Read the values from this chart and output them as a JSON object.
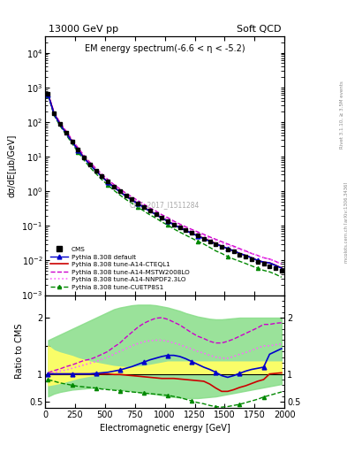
{
  "title_left": "13000 GeV pp",
  "title_right": "Soft QCD",
  "main_title": "EM energy spectrum(-6.6 < η < -5.2)",
  "ylabel_main": "dσ/dE[μb/GeV]",
  "ylabel_ratio": "Ratio to CMS",
  "xlabel": "Electromagnetic energy [GeV]",
  "watermark": "CMS_2017_I1511284",
  "rivet_text": "Rivet 3.1.10, ≥ 3.5M events",
  "mcplots_text": "mcplots.cern.ch [arXiv:1306.3436]",
  "xlim": [
    0,
    2000
  ],
  "ylim_main_log": [
    0.001,
    30000.0
  ],
  "ylim_ratio": [
    0.4,
    2.4
  ],
  "x_data": [
    25,
    75,
    125,
    175,
    225,
    275,
    325,
    375,
    425,
    475,
    525,
    575,
    625,
    675,
    725,
    775,
    825,
    875,
    925,
    975,
    1025,
    1075,
    1125,
    1175,
    1225,
    1275,
    1325,
    1375,
    1425,
    1475,
    1525,
    1575,
    1625,
    1675,
    1725,
    1775,
    1825,
    1875,
    1925,
    1975
  ],
  "cms_y": [
    650,
    180,
    90,
    50,
    28,
    16,
    9.5,
    6.0,
    4.0,
    2.7,
    1.9,
    1.35,
    1.0,
    0.75,
    0.58,
    0.45,
    0.35,
    0.27,
    0.22,
    0.17,
    0.14,
    0.11,
    0.09,
    0.075,
    0.062,
    0.052,
    0.043,
    0.036,
    0.03,
    0.025,
    0.021,
    0.018,
    0.015,
    0.013,
    0.011,
    0.009,
    0.008,
    0.007,
    0.006,
    0.005
  ],
  "cms_yerr": [
    50,
    15,
    7,
    4,
    2.2,
    1.3,
    0.8,
    0.5,
    0.32,
    0.22,
    0.15,
    0.11,
    0.08,
    0.06,
    0.047,
    0.036,
    0.028,
    0.022,
    0.018,
    0.014,
    0.011,
    0.009,
    0.007,
    0.006,
    0.005,
    0.004,
    0.0035,
    0.003,
    0.0025,
    0.002,
    0.0017,
    0.0015,
    0.0013,
    0.0011,
    0.001,
    0.0009,
    0.0008,
    0.0007,
    0.0006,
    0.0005
  ],
  "default_y": [
    620,
    170,
    85,
    48,
    27,
    15.5,
    9.2,
    5.8,
    3.85,
    2.6,
    1.82,
    1.3,
    0.97,
    0.72,
    0.56,
    0.44,
    0.34,
    0.265,
    0.215,
    0.167,
    0.137,
    0.108,
    0.088,
    0.073,
    0.061,
    0.051,
    0.043,
    0.036,
    0.03,
    0.026,
    0.022,
    0.019,
    0.016,
    0.014,
    0.012,
    0.01,
    0.009,
    0.0085,
    0.0072,
    0.006
  ],
  "cteql1_y": [
    640,
    175,
    87,
    49,
    27.5,
    15.8,
    9.4,
    5.9,
    3.92,
    2.65,
    1.85,
    1.32,
    0.98,
    0.73,
    0.57,
    0.44,
    0.345,
    0.268,
    0.217,
    0.168,
    0.138,
    0.109,
    0.089,
    0.074,
    0.062,
    0.052,
    0.044,
    0.037,
    0.031,
    0.026,
    0.022,
    0.019,
    0.016,
    0.014,
    0.012,
    0.01,
    0.009,
    0.0086,
    0.0073,
    0.0061
  ],
  "mstw_y": [
    660,
    190,
    96,
    55,
    31,
    18,
    10.8,
    6.8,
    4.55,
    3.1,
    2.18,
    1.56,
    1.17,
    0.88,
    0.69,
    0.54,
    0.42,
    0.33,
    0.27,
    0.21,
    0.173,
    0.138,
    0.113,
    0.094,
    0.079,
    0.067,
    0.057,
    0.048,
    0.041,
    0.035,
    0.03,
    0.026,
    0.022,
    0.019,
    0.016,
    0.014,
    0.012,
    0.011,
    0.0094,
    0.0079
  ],
  "nnpdf_y": [
    650,
    183,
    91,
    51,
    28.5,
    16.5,
    9.8,
    6.2,
    4.12,
    2.8,
    1.97,
    1.41,
    1.06,
    0.79,
    0.62,
    0.49,
    0.38,
    0.298,
    0.242,
    0.188,
    0.155,
    0.124,
    0.102,
    0.085,
    0.072,
    0.061,
    0.052,
    0.044,
    0.038,
    0.032,
    0.028,
    0.024,
    0.021,
    0.018,
    0.016,
    0.014,
    0.012,
    0.011,
    0.0095,
    0.008
  ],
  "cuetp_y": [
    580,
    155,
    77,
    43,
    24,
    13.5,
    7.9,
    4.9,
    3.22,
    2.15,
    1.5,
    1.06,
    0.78,
    0.58,
    0.45,
    0.35,
    0.27,
    0.208,
    0.168,
    0.13,
    0.105,
    0.082,
    0.066,
    0.054,
    0.044,
    0.036,
    0.03,
    0.024,
    0.019,
    0.016,
    0.013,
    0.011,
    0.0095,
    0.0082,
    0.007,
    0.006,
    0.0052,
    0.0047,
    0.004,
    0.0033
  ],
  "ratio_default": [
    1.0,
    1.0,
    1.0,
    1.0,
    1.0,
    1.0,
    1.0,
    1.0,
    1.01,
    1.02,
    1.03,
    1.05,
    1.07,
    1.1,
    1.13,
    1.17,
    1.21,
    1.25,
    1.28,
    1.31,
    1.33,
    1.33,
    1.31,
    1.27,
    1.22,
    1.17,
    1.12,
    1.08,
    1.03,
    0.97,
    0.94,
    0.97,
    1.01,
    1.05,
    1.08,
    1.1,
    1.12,
    1.35,
    1.4,
    1.45
  ],
  "ratio_cteql1": [
    1.0,
    1.0,
    1.0,
    1.0,
    1.0,
    1.0,
    1.0,
    1.0,
    1.0,
    1.0,
    1.0,
    0.99,
    0.99,
    0.98,
    0.97,
    0.96,
    0.95,
    0.94,
    0.93,
    0.92,
    0.92,
    0.92,
    0.91,
    0.9,
    0.89,
    0.88,
    0.87,
    0.82,
    0.75,
    0.69,
    0.69,
    0.72,
    0.76,
    0.79,
    0.83,
    0.87,
    0.9,
    1.0,
    1.01,
    1.02
  ],
  "ratio_mstw": [
    1.02,
    1.06,
    1.09,
    1.13,
    1.16,
    1.2,
    1.24,
    1.26,
    1.3,
    1.35,
    1.4,
    1.48,
    1.55,
    1.65,
    1.74,
    1.83,
    1.9,
    1.95,
    1.99,
    2.0,
    1.97,
    1.92,
    1.87,
    1.8,
    1.73,
    1.67,
    1.63,
    1.58,
    1.55,
    1.55,
    1.58,
    1.62,
    1.67,
    1.72,
    1.77,
    1.82,
    1.88,
    1.88,
    1.9,
    1.91
  ],
  "ratio_nnpdf": [
    1.01,
    1.03,
    1.05,
    1.07,
    1.1,
    1.13,
    1.16,
    1.19,
    1.22,
    1.26,
    1.3,
    1.35,
    1.4,
    1.45,
    1.5,
    1.54,
    1.57,
    1.59,
    1.6,
    1.6,
    1.58,
    1.55,
    1.52,
    1.48,
    1.44,
    1.4,
    1.37,
    1.33,
    1.3,
    1.28,
    1.28,
    1.31,
    1.35,
    1.38,
    1.42,
    1.46,
    1.5,
    1.5,
    1.52,
    1.53
  ],
  "ratio_cuetp": [
    0.9,
    0.87,
    0.84,
    0.82,
    0.8,
    0.78,
    0.77,
    0.76,
    0.75,
    0.73,
    0.72,
    0.71,
    0.7,
    0.69,
    0.68,
    0.67,
    0.66,
    0.65,
    0.64,
    0.63,
    0.62,
    0.6,
    0.58,
    0.55,
    0.52,
    0.49,
    0.47,
    0.44,
    0.42,
    0.41,
    0.42,
    0.44,
    0.46,
    0.49,
    0.52,
    0.55,
    0.59,
    0.62,
    0.65,
    0.68
  ],
  "band_yellow_lo": [
    0.8,
    0.82,
    0.84,
    0.87,
    0.9,
    0.93,
    0.95,
    0.97,
    0.98,
    0.99,
    1.0,
    1.0,
    1.0,
    1.0,
    1.0,
    1.0,
    1.0,
    1.0,
    1.0,
    1.0,
    1.0,
    1.0,
    1.0,
    1.0,
    1.0,
    1.0,
    1.0,
    1.0,
    1.0,
    1.0,
    1.0,
    1.0,
    1.0,
    1.0,
    1.0,
    1.0,
    1.0,
    1.0,
    1.0,
    1.0
  ],
  "band_yellow_hi": [
    1.5,
    1.42,
    1.38,
    1.35,
    1.32,
    1.28,
    1.25,
    1.22,
    1.2,
    1.18,
    1.16,
    1.14,
    1.13,
    1.12,
    1.12,
    1.13,
    1.14,
    1.16,
    1.18,
    1.2,
    1.22,
    1.22,
    1.22,
    1.22,
    1.22,
    1.22,
    1.22,
    1.22,
    1.22,
    1.22,
    1.22,
    1.22,
    1.22,
    1.22,
    1.22,
    1.22,
    1.22,
    1.22,
    1.22,
    1.22
  ],
  "band_green_lo": [
    0.6,
    0.65,
    0.68,
    0.7,
    0.72,
    0.73,
    0.74,
    0.75,
    0.75,
    0.75,
    0.74,
    0.73,
    0.72,
    0.71,
    0.7,
    0.68,
    0.67,
    0.65,
    0.64,
    0.62,
    0.6,
    0.59,
    0.58,
    0.57,
    0.57,
    0.57,
    0.58,
    0.59,
    0.6,
    0.62,
    0.64,
    0.66,
    0.68,
    0.7,
    0.72,
    0.74,
    0.76,
    0.78,
    0.8,
    0.82
  ],
  "band_green_hi": [
    1.6,
    1.65,
    1.7,
    1.75,
    1.8,
    1.85,
    1.9,
    1.95,
    2.0,
    2.05,
    2.1,
    2.15,
    2.18,
    2.2,
    2.22,
    2.23,
    2.23,
    2.23,
    2.22,
    2.2,
    2.18,
    2.15,
    2.12,
    2.08,
    2.05,
    2.02,
    2.0,
    1.98,
    1.97,
    1.97,
    1.98,
    1.99,
    2.0,
    2.0,
    2.0,
    2.0,
    2.0,
    2.0,
    2.0,
    2.0
  ],
  "color_cms": "#000000",
  "color_default": "#0000cc",
  "color_cteql1": "#cc0000",
  "color_mstw": "#cc00cc",
  "color_nnpdf": "#ff66ff",
  "color_cuetp": "#008800",
  "legend_labels": [
    "CMS",
    "Pythia 8.308 default",
    "Pythia 8.308 tune-A14-CTEQL1",
    "Pythia 8.308 tune-A14-MSTW2008LO",
    "Pythia 8.308 tune-A14-NNPDF2.3LO",
    "Pythia 8.308 tune-CUETP8S1"
  ]
}
